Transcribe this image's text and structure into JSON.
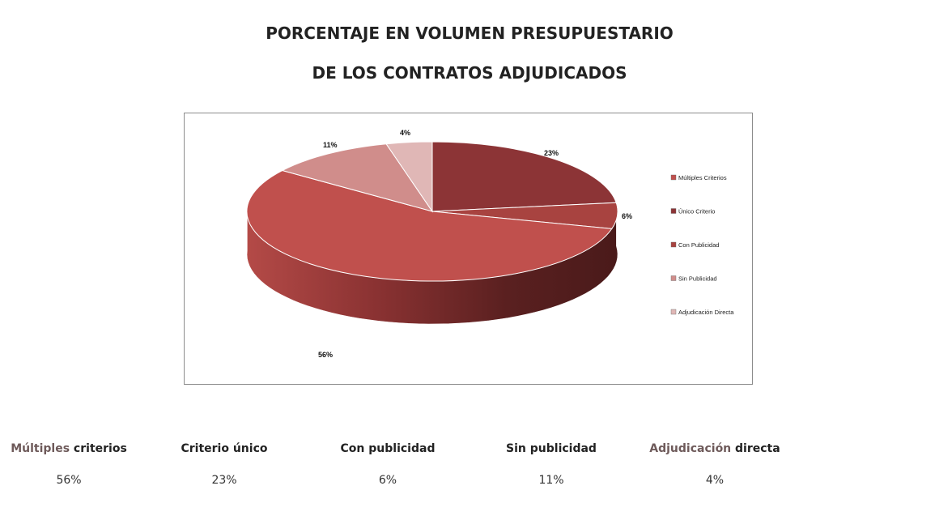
{
  "title": {
    "line1": "PORCENTAJE EN VOLUMEN PRESUPUESTARIO",
    "line2": "DE LOS CONTRATOS ADJUDICADOS"
  },
  "chart_data": {
    "type": "pie",
    "style": "3d",
    "legend_position": "right",
    "slices": [
      {
        "label": "Múltiples Criterios",
        "value": 56,
        "display": "56%",
        "color": "#c0504d"
      },
      {
        "label": "Único Criterio",
        "value": 23,
        "display": "23%",
        "color": "#8c3436"
      },
      {
        "label": "Con Publicidad",
        "value": 6,
        "display": "6%",
        "color": "#a84340"
      },
      {
        "label": "Sin Publicidad",
        "value": 11,
        "display": "11%",
        "color": "#d08d8b"
      },
      {
        "label": "Adjudicación Directa",
        "value": 4,
        "display": "4%",
        "color": "#e0b7b6"
      }
    ],
    "legend_order": [
      "Múltiples Criterios",
      "Único Criterio",
      "Con Publicidad",
      "Sin Publicidad",
      "Adjudicación Directa"
    ]
  },
  "summary": [
    {
      "head_a": "Múltiples",
      "head_b": " criterios",
      "value": "56%"
    },
    {
      "head_a": "",
      "head_b": "Criterio único",
      "value": "23%"
    },
    {
      "head_a": "",
      "head_b": "Con publicidad",
      "value": "6%"
    },
    {
      "head_a": "",
      "head_b": "Sin publicidad",
      "value": "11%"
    },
    {
      "head_a": "Adjudicación",
      "head_b": " directa",
      "value": "4%"
    }
  ]
}
